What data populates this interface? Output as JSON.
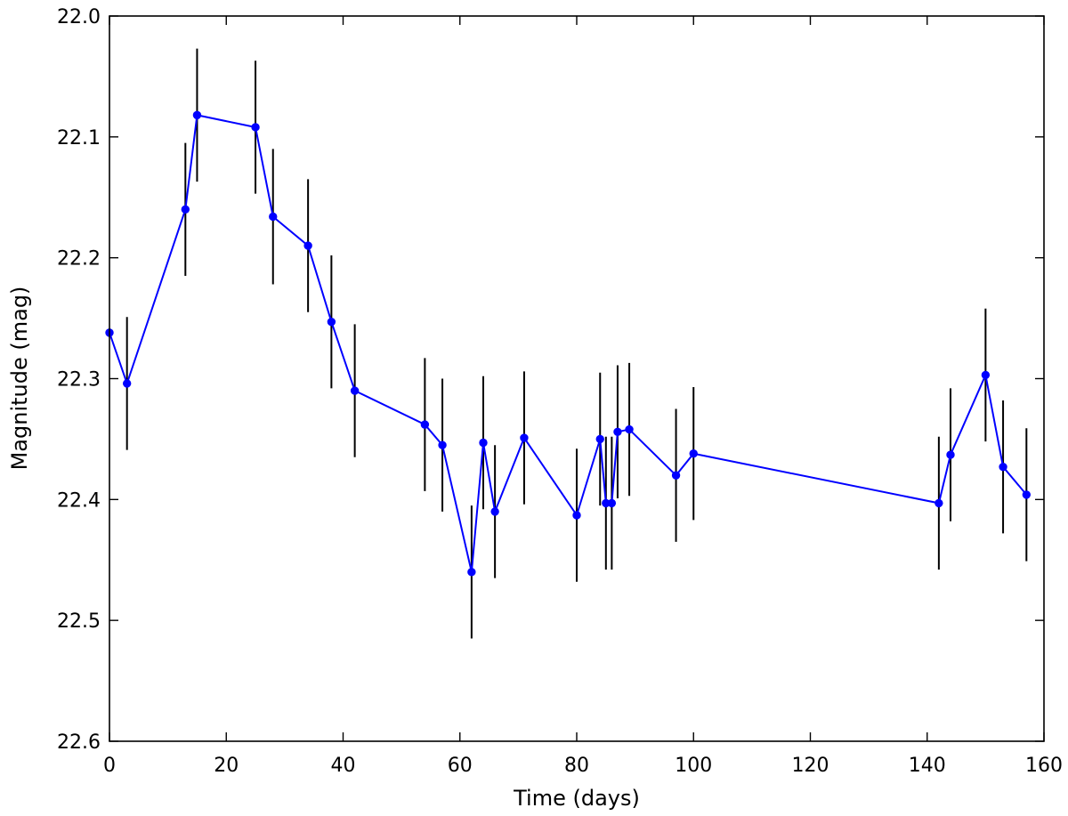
{
  "chart_data": {
    "type": "line",
    "title": "",
    "xlabel": "Time (days)",
    "ylabel": "Magnitude (mag)",
    "xlim": [
      0,
      160
    ],
    "ylim": [
      22.0,
      22.6
    ],
    "y_inverted": true,
    "grid": false,
    "x_ticks": [
      0,
      20,
      40,
      60,
      80,
      100,
      120,
      140,
      160
    ],
    "y_ticks": [
      22.0,
      22.1,
      22.2,
      22.3,
      22.4,
      22.5,
      22.6
    ],
    "x_tick_labels": [
      "0",
      "20",
      "40",
      "60",
      "80",
      "100",
      "120",
      "140",
      "160"
    ],
    "y_tick_labels": [
      "22.0",
      "22.1",
      "22.2",
      "22.3",
      "22.4",
      "22.5",
      "22.6"
    ],
    "series": [
      {
        "line_color": "#0000ff",
        "errorbar_color": "#000000",
        "x": [
          0,
          3,
          13,
          15,
          25,
          28,
          34,
          38,
          42,
          54,
          57,
          62,
          64,
          66,
          71,
          80,
          84,
          85,
          86,
          87,
          89,
          97,
          100,
          142,
          144,
          150,
          153,
          157
        ],
        "y": [
          22.262,
          22.304,
          22.16,
          22.082,
          22.092,
          22.166,
          22.19,
          22.253,
          22.31,
          22.338,
          22.355,
          22.46,
          22.353,
          22.41,
          22.349,
          22.413,
          22.35,
          22.403,
          22.403,
          22.344,
          22.342,
          22.38,
          22.362,
          22.403,
          22.363,
          22.297,
          22.373,
          22.396
        ],
        "yerr": [
          0.0,
          0.055,
          0.055,
          0.055,
          0.055,
          0.056,
          0.055,
          0.055,
          0.055,
          0.055,
          0.055,
          0.055,
          0.055,
          0.055,
          0.055,
          0.055,
          0.055,
          0.055,
          0.055,
          0.055,
          0.055,
          0.055,
          0.055,
          0.055,
          0.055,
          0.055,
          0.055,
          0.055
        ]
      }
    ]
  }
}
